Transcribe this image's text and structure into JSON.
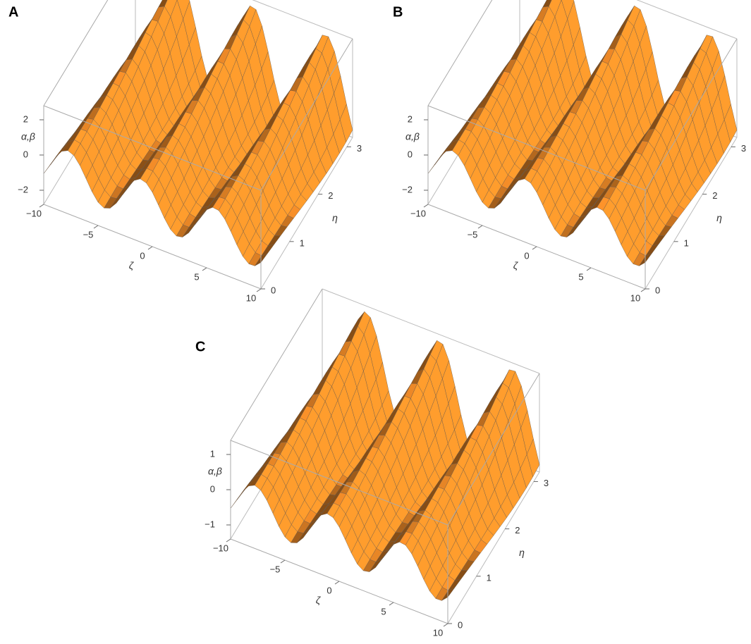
{
  "chart_data": [
    {
      "type": "surface3d",
      "label": "A",
      "xlabel": "ζ",
      "ylabel": "η",
      "zlabel": "α,β",
      "xlim": [
        -10,
        10
      ],
      "xticks": [
        {
          "value": -10,
          "label": "−10"
        },
        {
          "value": -5,
          "label": "−5"
        },
        0,
        5,
        10
      ],
      "ylim": [
        0,
        3.2
      ],
      "yticks": [
        0,
        1,
        2,
        3
      ],
      "zlim": [
        -2.8,
        2.8
      ],
      "zticks": [
        {
          "value": -2,
          "label": "−2"
        },
        0,
        2
      ],
      "color": "#f28c28"
    },
    {
      "type": "surface3d",
      "label": "B",
      "xlabel": "ζ",
      "ylabel": "η",
      "zlabel": "α,β",
      "xlim": [
        -10,
        10
      ],
      "xticks": [
        {
          "value": -10,
          "label": "−10"
        },
        {
          "value": -5,
          "label": "−5"
        },
        0,
        5,
        10
      ],
      "ylim": [
        0,
        3.2
      ],
      "yticks": [
        0,
        1,
        2,
        3
      ],
      "zlim": [
        -2.8,
        2.8
      ],
      "zticks": [
        {
          "value": -2,
          "label": "−2"
        },
        0,
        2
      ],
      "color": "#f28c28"
    },
    {
      "type": "surface3d",
      "label": "C",
      "xlabel": "ζ",
      "ylabel": "η",
      "zlabel": "α,β",
      "xlim": [
        -10,
        10
      ],
      "xticks": [
        {
          "value": -10,
          "label": "−10"
        },
        {
          "value": -5,
          "label": "−5"
        },
        0,
        5,
        10
      ],
      "ylim": [
        0,
        3.2
      ],
      "yticks": [
        0,
        1,
        2,
        3
      ],
      "zlim": [
        -1.4,
        1.4
      ],
      "zticks": [
        {
          "value": -1,
          "label": "−1"
        },
        0,
        1
      ],
      "color": "#f28c28"
    }
  ]
}
